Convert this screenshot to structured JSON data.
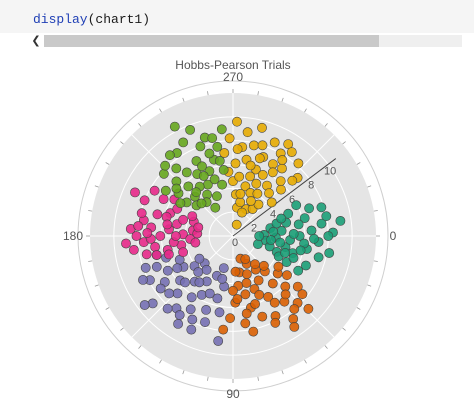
{
  "cell": {
    "fn": "display",
    "arg": "(chart1)"
  },
  "chart_data": {
    "type": "scatter",
    "subtype": "polar",
    "title": "Hobbs-Pearson Trials",
    "angular_ticks": [
      "0",
      "90",
      "180",
      "270"
    ],
    "radial_ticks": [
      "0",
      "2",
      "4",
      "6",
      "8",
      "10"
    ],
    "radial_range": [
      0,
      12
    ],
    "angular_direction": "clockwise",
    "grid": true,
    "series": [
      {
        "color": "#e6ab02",
        "points": [
          [
            278,
            2.4
          ],
          [
            288,
            1.0
          ],
          [
            272,
            9.6
          ],
          [
            285,
            9.4
          ],
          [
            294,
            8.6
          ],
          [
            300,
            8.0
          ],
          [
            268,
            8.2
          ],
          [
            276,
            7.5
          ],
          [
            283,
            7.8
          ],
          [
            291,
            7.1
          ],
          [
            299,
            6.9
          ],
          [
            306,
            7.0
          ],
          [
            312,
            8.2
          ],
          [
            318,
            7.3
          ],
          [
            272,
            6.1
          ],
          [
            280,
            6.5
          ],
          [
            289,
            5.9
          ],
          [
            296,
            5.7
          ],
          [
            304,
            5.1
          ],
          [
            310,
            4.7
          ],
          [
            316,
            5.6
          ],
          [
            284,
            4.3
          ],
          [
            292,
            3.9
          ],
          [
            300,
            4.1
          ],
          [
            274,
            3.5
          ],
          [
            282,
            2.9
          ],
          [
            296,
            2.5
          ],
          [
            306,
            2.8
          ],
          [
            289,
            6.9
          ],
          [
            270,
            4.6
          ],
          [
            311,
            6.1
          ],
          [
            319,
            4.3
          ],
          [
            264,
            7.0
          ],
          [
            278,
            8.8
          ],
          [
            301,
            9.0
          ],
          [
            286,
            5.2
          ],
          [
            294,
            4.8
          ],
          [
            302,
            6.3
          ],
          [
            276,
            5.0
          ],
          [
            309,
            3.4
          ],
          [
            288,
            8.0
          ],
          [
            280,
            3.6
          ],
          [
            297,
            3.3
          ],
          [
            273,
            7.3
          ],
          [
            305,
            8.6
          ],
          [
            291,
            2.1
          ],
          [
            317,
            6.8
          ],
          [
            284,
            6.1
          ],
          [
            266,
            5.4
          ],
          [
            303,
            7.6
          ]
        ]
      },
      {
        "color": "#1b9e77",
        "points": [
          [
            338,
            5.0
          ],
          [
            346,
            6.2
          ],
          [
            352,
            7.5
          ],
          [
            358,
            8.4
          ],
          [
            4,
            7.2
          ],
          [
            10,
            6.3
          ],
          [
            16,
            5.2
          ],
          [
            354,
            4.1
          ],
          [
            2,
            3.6
          ],
          [
            12,
            4.5
          ],
          [
            20,
            3.9
          ],
          [
            348,
            3.2
          ],
          [
            358,
            2.6
          ],
          [
            8,
            2.8
          ],
          [
            18,
            2.2
          ],
          [
            340,
            6.8
          ],
          [
            350,
            5.6
          ],
          [
            0,
            5.6
          ],
          [
            6,
            6.0
          ],
          [
            14,
            7.4
          ],
          [
            22,
            6.6
          ],
          [
            26,
            5.0
          ],
          [
            344,
            3.8
          ],
          [
            356,
            6.6
          ],
          [
            4,
            4.8
          ],
          [
            16,
            3.2
          ],
          [
            342,
            7.8
          ],
          [
            352,
            9.1
          ],
          [
            0,
            8.0
          ],
          [
            10,
            8.2
          ],
          [
            24,
            4.2
          ],
          [
            346,
            4.6
          ],
          [
            354,
            3.4
          ],
          [
            0,
            2.2
          ],
          [
            12,
            5.8
          ],
          [
            20,
            5.4
          ],
          [
            334,
            5.9
          ],
          [
            348,
            8.0
          ],
          [
            2,
            6.8
          ],
          [
            8,
            4.0
          ],
          [
            28,
            6.2
          ],
          [
            340,
            4.3
          ],
          [
            358,
            5.1
          ],
          [
            18,
            4.6
          ],
          [
            6,
            3.2
          ]
        ]
      },
      {
        "color": "#d95f02",
        "points": [
          [
            80,
            3.1
          ],
          [
            84,
            4.2
          ],
          [
            88,
            5.6
          ],
          [
            92,
            6.9
          ],
          [
            96,
            7.9
          ],
          [
            76,
            6.2
          ],
          [
            68,
            4.8
          ],
          [
            60,
            5.9
          ],
          [
            52,
            7.0
          ],
          [
            44,
            6.1
          ],
          [
            40,
            4.9
          ],
          [
            48,
            4.0
          ],
          [
            56,
            3.4
          ],
          [
            64,
            2.6
          ],
          [
            72,
            2.0
          ],
          [
            62,
            7.6
          ],
          [
            54,
            8.6
          ],
          [
            46,
            7.8
          ],
          [
            38,
            6.9
          ],
          [
            70,
            7.2
          ],
          [
            78,
            5.0
          ],
          [
            86,
            3.0
          ],
          [
            44,
            3.6
          ],
          [
            58,
            6.6
          ],
          [
            66,
            5.4
          ],
          [
            74,
            4.1
          ],
          [
            50,
            5.2
          ],
          [
            36,
            5.6
          ],
          [
            82,
            7.4
          ],
          [
            90,
            4.6
          ],
          [
            60,
            4.3
          ],
          [
            48,
            6.6
          ],
          [
            70,
            3.4
          ],
          [
            40,
            7.6
          ],
          [
            64,
            8.1
          ],
          [
            52,
            3.0
          ],
          [
            78,
            8.2
          ],
          [
            34,
            4.6
          ],
          [
            56,
            9.2
          ],
          [
            72,
            6.0
          ],
          [
            86,
            5.3
          ],
          [
            44,
            8.8
          ],
          [
            62,
            2.2
          ],
          [
            80,
            6.6
          ],
          [
            50,
            8.0
          ]
        ]
      },
      {
        "color": "#7570b3",
        "points": [
          [
            100,
            4.3
          ],
          [
            104,
            5.4
          ],
          [
            110,
            6.6
          ],
          [
            116,
            7.8
          ],
          [
            122,
            8.7
          ],
          [
            128,
            7.7
          ],
          [
            134,
            6.7
          ],
          [
            140,
            5.8
          ],
          [
            146,
            6.9
          ],
          [
            152,
            7.9
          ],
          [
            158,
            6.9
          ],
          [
            148,
            4.9
          ],
          [
            142,
            4.1
          ],
          [
            136,
            3.3
          ],
          [
            128,
            3.6
          ],
          [
            120,
            4.4
          ],
          [
            112,
            3.6
          ],
          [
            106,
            2.8
          ],
          [
            118,
            5.6
          ],
          [
            124,
            6.2
          ],
          [
            130,
            5.0
          ],
          [
            136,
            5.6
          ],
          [
            144,
            7.5
          ],
          [
            154,
            8.4
          ],
          [
            162,
            5.9
          ],
          [
            156,
            4.9
          ],
          [
            100,
            6.5
          ],
          [
            108,
            7.6
          ],
          [
            114,
            8.6
          ],
          [
            132,
            8.2
          ],
          [
            140,
            8.8
          ],
          [
            126,
            4.8
          ],
          [
            138,
            7.2
          ],
          [
            150,
            5.4
          ],
          [
            104,
            3.7
          ],
          [
            120,
            7.1
          ],
          [
            146,
            3.4
          ],
          [
            160,
            7.8
          ],
          [
            112,
            5.2
          ],
          [
            134,
            4.2
          ],
          [
            152,
            6.2
          ],
          [
            124,
            8.0
          ],
          [
            142,
            9.4
          ],
          [
            98,
            8.9
          ],
          [
            166,
            6.6
          ]
        ]
      },
      {
        "color": "#e7298a",
        "points": [
          [
            168,
            5.6
          ],
          [
            172,
            6.6
          ],
          [
            176,
            7.5
          ],
          [
            180,
            8.1
          ],
          [
            184,
            8.6
          ],
          [
            190,
            7.6
          ],
          [
            196,
            6.6
          ],
          [
            200,
            5.6
          ],
          [
            192,
            4.8
          ],
          [
            186,
            5.4
          ],
          [
            182,
            4.2
          ],
          [
            176,
            3.6
          ],
          [
            170,
            4.4
          ],
          [
            164,
            5.6
          ],
          [
            180,
            6.1
          ],
          [
            186,
            6.9
          ],
          [
            194,
            7.9
          ],
          [
            202,
            8.0
          ],
          [
            208,
            6.6
          ],
          [
            174,
            5.0
          ],
          [
            188,
            3.4
          ],
          [
            198,
            4.4
          ],
          [
            206,
            5.2
          ],
          [
            168,
            7.4
          ],
          [
            178,
            6.9
          ],
          [
            162,
            4.4
          ],
          [
            184,
            3.0
          ],
          [
            196,
            5.8
          ],
          [
            210,
            7.6
          ],
          [
            172,
            8.4
          ],
          [
            190,
            5.6
          ],
          [
            204,
            9.0
          ],
          [
            180,
            4.8
          ],
          [
            166,
            6.6
          ],
          [
            200,
            3.5
          ],
          [
            186,
            8.0
          ],
          [
            212,
            5.8
          ],
          [
            176,
            9.0
          ],
          [
            194,
            3.0
          ],
          [
            170,
            3.2
          ],
          [
            182,
            7.2
          ],
          [
            206,
            3.8
          ]
        ]
      },
      {
        "color": "#66a61e",
        "points": [
          [
            218,
            5.8
          ],
          [
            224,
            6.6
          ],
          [
            230,
            7.4
          ],
          [
            236,
            8.4
          ],
          [
            242,
            8.9
          ],
          [
            248,
            9.6
          ],
          [
            254,
            8.6
          ],
          [
            260,
            7.6
          ],
          [
            256,
            6.6
          ],
          [
            250,
            5.8
          ],
          [
            244,
            4.8
          ],
          [
            238,
            4.1
          ],
          [
            232,
            3.6
          ],
          [
            226,
            4.6
          ],
          [
            220,
            4.0
          ],
          [
            214,
            6.8
          ],
          [
            222,
            7.8
          ],
          [
            232,
            8.6
          ],
          [
            244,
            7.0
          ],
          [
            252,
            5.0
          ],
          [
            262,
            5.6
          ],
          [
            246,
            6.4
          ],
          [
            240,
            6.0
          ],
          [
            228,
            5.6
          ],
          [
            216,
            4.8
          ],
          [
            236,
            5.0
          ],
          [
            258,
            4.4
          ],
          [
            248,
            3.6
          ],
          [
            226,
            8.2
          ],
          [
            234,
            6.6
          ],
          [
            242,
            10.4
          ],
          [
            264,
            9.0
          ],
          [
            254,
            7.2
          ],
          [
            220,
            6.2
          ],
          [
            238,
            2.8
          ],
          [
            250,
            8.0
          ],
          [
            230,
            4.8
          ],
          [
            212,
            5.2
          ],
          [
            260,
            6.4
          ],
          [
            244,
            5.6
          ],
          [
            226,
            3.8
          ],
          [
            258,
            8.4
          ]
        ]
      }
    ]
  }
}
